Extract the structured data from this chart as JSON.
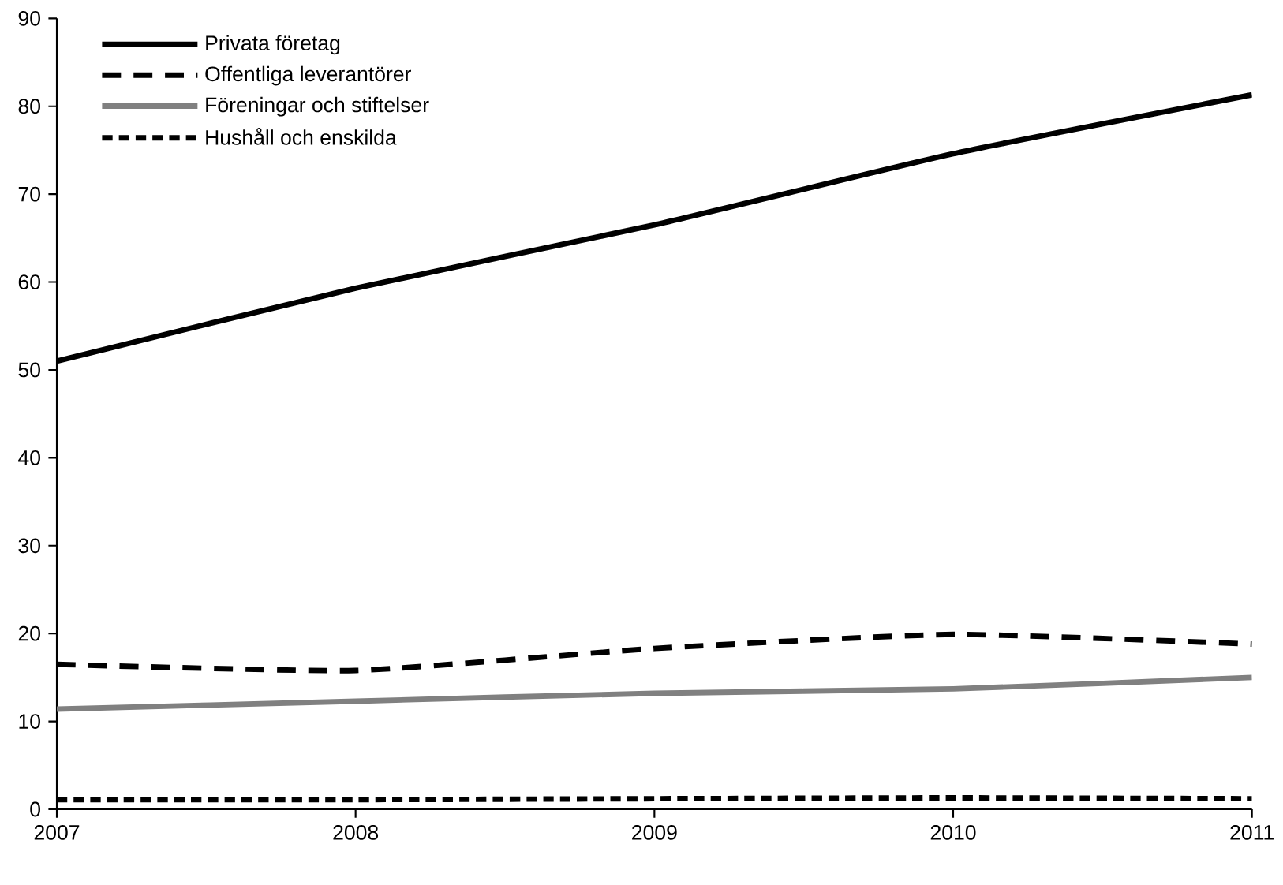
{
  "chart_data": {
    "type": "line",
    "x": [
      2007,
      2008,
      2009,
      2010,
      2011
    ],
    "series": [
      {
        "name": "Privata företag",
        "color": "#000000",
        "line_style": "solid",
        "values": [
          51,
          59.3,
          66.5,
          74.6,
          81.3
        ]
      },
      {
        "name": "Offentliga leverantörer",
        "color": "#000000",
        "line_style": "dashed",
        "values": [
          16.5,
          15.8,
          18.3,
          19.9,
          18.8
        ]
      },
      {
        "name": "Föreningar och stiftelser",
        "color": "#808080",
        "line_style": "solid",
        "values": [
          11.4,
          12.3,
          13.2,
          13.7,
          15.0
        ]
      },
      {
        "name": "Hushåll och enskilda",
        "color": "#000000",
        "line_style": "dotted",
        "values": [
          1.1,
          1.1,
          1.2,
          1.3,
          1.2
        ]
      }
    ],
    "xlim": [
      2007,
      2011
    ],
    "xticks": [
      2007,
      2008,
      2009,
      2010,
      2011
    ],
    "ylim": [
      0,
      90
    ],
    "yticks": [
      0,
      10,
      20,
      30,
      40,
      50,
      60,
      70,
      80,
      90
    ],
    "grid": false,
    "legend": "top left"
  }
}
